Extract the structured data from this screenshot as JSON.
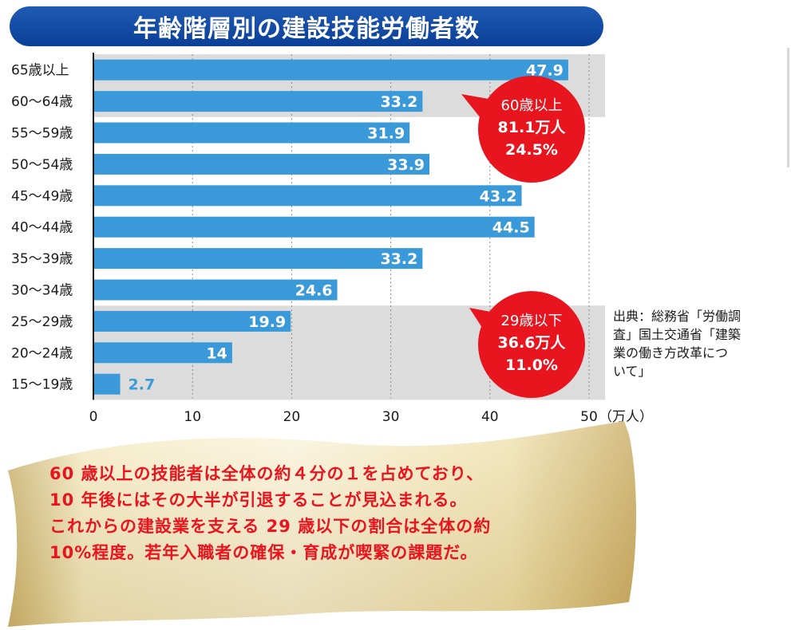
{
  "chart_data": {
    "type": "bar",
    "orientation": "horizontal",
    "title": "年齢階層別の建設技能労働者数",
    "categories": [
      "65歳以上",
      "60〜64歳",
      "55〜59歳",
      "50〜54歳",
      "45〜49歳",
      "40〜44歳",
      "35〜39歳",
      "30〜34歳",
      "25〜29歳",
      "20〜24歳",
      "15〜19歳"
    ],
    "values": [
      47.9,
      33.2,
      31.9,
      33.9,
      43.2,
      44.5,
      33.2,
      24.6,
      19.9,
      14,
      2.7
    ],
    "value_labels": [
      "47.9",
      "33.2",
      "31.9",
      "33.9",
      "43.2",
      "44.5",
      "33.2",
      "24.6",
      "19.9",
      "14",
      "2.7"
    ],
    "xlim": [
      0,
      50
    ],
    "xticks": [
      "0",
      "10",
      "20",
      "30",
      "40",
      "50"
    ],
    "xunit": "（万人）",
    "grid": true,
    "bar_color": "#3a9ad9",
    "highlight_color": "#dcdcdc",
    "highlight_groups": [
      {
        "from": 0,
        "to": 1
      },
      {
        "from": 8,
        "to": 10
      }
    ],
    "annotations": [
      {
        "group": "upper",
        "lines": [
          "60歳以上",
          "81.1万人",
          "24.5%"
        ],
        "color": "#e8141e"
      },
      {
        "group": "lower",
        "lines": [
          "29歳以下",
          "36.6万人",
          "11.0%"
        ],
        "color": "#e8141e"
      }
    ]
  },
  "source": {
    "lines": [
      "出典：総務省「労働調",
      "査」国土交通省「建築",
      "業の働き方改革につ",
      "いて」"
    ]
  },
  "caption": {
    "lines": [
      "60 歳以上の技能者は全体の約４分の１を占めており、",
      "10 年後にはその大半が引退することが見込まれる。",
      "これからの建設業を支える 29 歳以下の割合は全体の約",
      "10%程度。若年入職者の確保・育成が喫緊の課題だ。"
    ]
  }
}
